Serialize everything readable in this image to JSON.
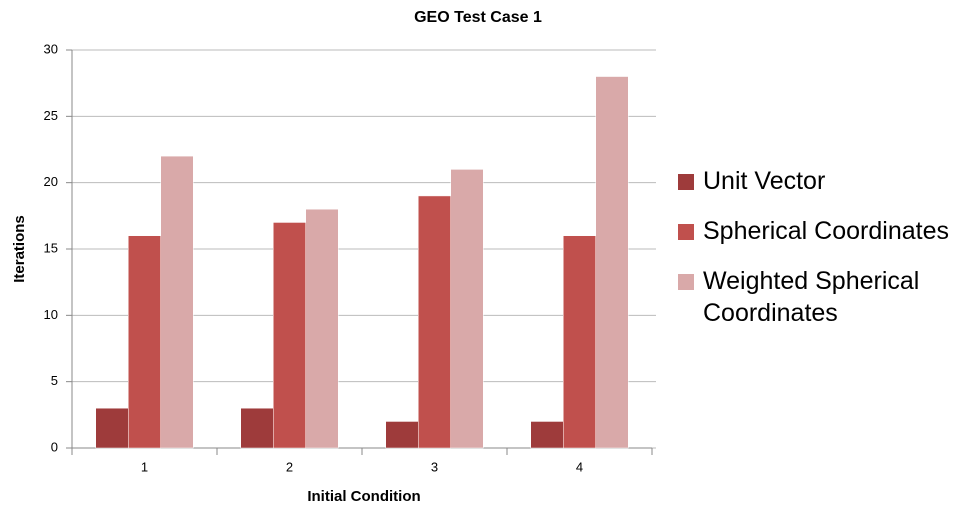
{
  "chart_data": {
    "type": "bar",
    "title": "GEO Test Case 1",
    "x_label": "Initial Condition",
    "y_label": "Iterations",
    "categories": [
      "1",
      "2",
      "3",
      "4"
    ],
    "series": [
      {
        "name": "Unit Vector",
        "color": "#9e3b3b",
        "values": [
          3,
          3,
          2,
          2
        ]
      },
      {
        "name": "Spherical Coordinates",
        "color": "#c0504d",
        "values": [
          16,
          17,
          19,
          16
        ]
      },
      {
        "name": "Weighted Spherical Coordinates",
        "color": "#d9a9a9",
        "values": [
          22,
          18,
          21,
          28
        ]
      }
    ],
    "ylim": [
      0,
      30
    ],
    "yticks": [
      0,
      5,
      10,
      15,
      20,
      25,
      30
    ],
    "grid": true,
    "legend": "right"
  }
}
